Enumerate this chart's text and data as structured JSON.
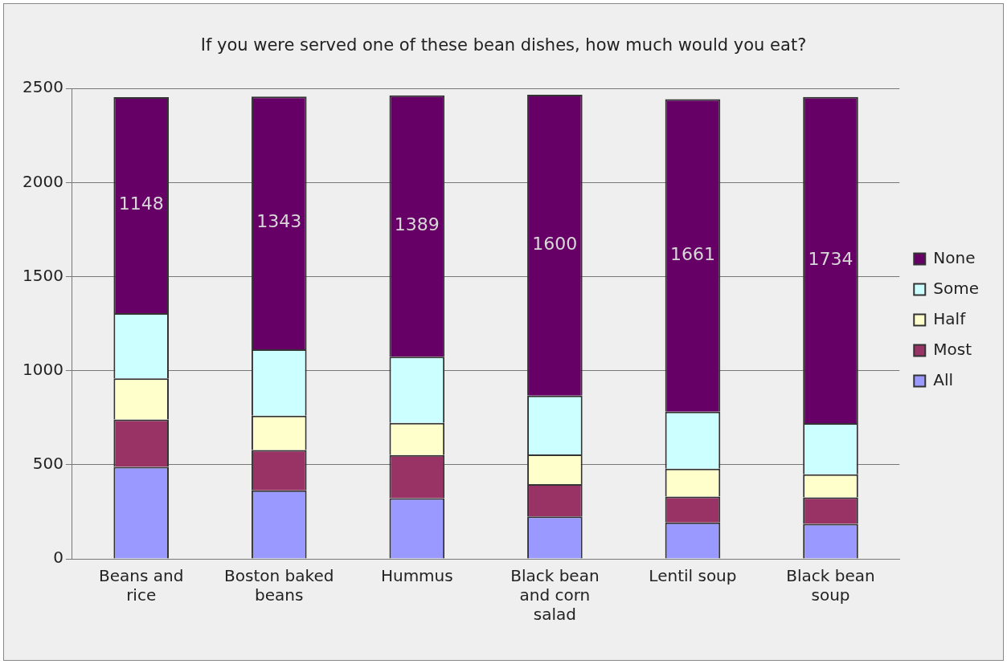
{
  "chart_data": {
    "type": "bar",
    "title": "If you were served one of these bean dishes, how much would you eat?",
    "categories": [
      "Beans and rice",
      "Boston baked beans",
      "Hummus",
      "Black bean and corn salad",
      "Lentil soup",
      "Black bean soup"
    ],
    "stacked": true,
    "ylim": [
      0,
      2500
    ],
    "yticks": [
      0,
      500,
      1000,
      1500,
      2000,
      2500
    ],
    "grid": "y",
    "legend": "right",
    "series": [
      {
        "name": "All",
        "color": "#9999ff",
        "values": [
          489,
          364,
          322,
          225,
          193,
          186
        ]
      },
      {
        "name": "Most",
        "color": "#993366",
        "values": [
          251,
          214,
          230,
          172,
          138,
          141
        ]
      },
      {
        "name": "Half",
        "color": "#ffffcc",
        "values": [
          219,
          183,
          170,
          158,
          148,
          122
        ]
      },
      {
        "name": "Some",
        "color": "#ccffff",
        "values": [
          347,
          353,
          352,
          312,
          303,
          272
        ]
      },
      {
        "name": "None",
        "color": "#660066",
        "values": [
          1148,
          1343,
          1389,
          1600,
          1661,
          1734
        ],
        "value_labels": [
          "1148",
          "1343",
          "1389",
          "1600",
          "1661",
          "1734"
        ]
      }
    ]
  }
}
